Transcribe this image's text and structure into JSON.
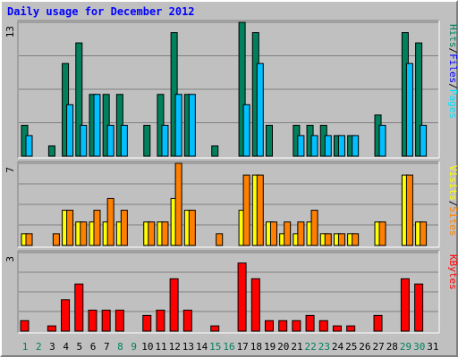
{
  "title": "Daily usage for December 2012",
  "colors": {
    "hits": "#00805c",
    "files": "#00c0ff",
    "pages": "#00e0ff",
    "visits": "#ffff00",
    "sites": "#ff8000",
    "kbytes": "#ff0000",
    "background": "#c0c0c0",
    "plot": "#c0c0c0",
    "grid": "#808080",
    "title": "#0000ff",
    "weekend_label": "#00805c"
  },
  "legend": {
    "panel1": [
      {
        "label": "Hits",
        "color": "#00805c"
      },
      {
        "sep": "/",
        "color": "#000000"
      },
      {
        "label": "Files",
        "color": "#0000ff"
      },
      {
        "sep": "/",
        "color": "#000000"
      },
      {
        "label": "Pages",
        "color": "#00e0ff"
      }
    ],
    "panel2": [
      {
        "label": "Visits",
        "color": "#ffff00"
      },
      {
        "sep": "/",
        "color": "#000000"
      },
      {
        "label": "Sites",
        "color": "#ff8000"
      }
    ],
    "panel3": [
      {
        "label": "KBytes",
        "color": "#ff0000"
      }
    ]
  },
  "chart_data": [
    {
      "type": "bar",
      "title": "Daily usage for December 2012",
      "categories": [
        "1",
        "2",
        "3",
        "4",
        "5",
        "6",
        "7",
        "8",
        "9",
        "10",
        "11",
        "12",
        "13",
        "14",
        "15",
        "16",
        "17",
        "18",
        "19",
        "20",
        "21",
        "22",
        "23",
        "24",
        "25",
        "26",
        "27",
        "28",
        "29",
        "30",
        "31"
      ],
      "weekend_days": [
        "1",
        "2",
        "8",
        "9",
        "15",
        "16",
        "22",
        "23",
        "29",
        "30"
      ],
      "ylabel_max": "13",
      "ylim": [
        0,
        13
      ],
      "series": [
        {
          "name": "Hits",
          "values": [
            3,
            0,
            1,
            9,
            11,
            6,
            6,
            6,
            0,
            3,
            6,
            12,
            6,
            0,
            1,
            0,
            13,
            12,
            3,
            0,
            3,
            3,
            3,
            2,
            2,
            0,
            4,
            0,
            12,
            11,
            0
          ]
        },
        {
          "name": "Files",
          "values": [
            2,
            0,
            0,
            5,
            3,
            6,
            3,
            3,
            0,
            0,
            3,
            6,
            6,
            0,
            0,
            0,
            5,
            9,
            0,
            0,
            2,
            2,
            2,
            2,
            2,
            0,
            3,
            0,
            9,
            3,
            0
          ]
        }
      ]
    },
    {
      "type": "bar",
      "categories": [
        "1",
        "2",
        "3",
        "4",
        "5",
        "6",
        "7",
        "8",
        "9",
        "10",
        "11",
        "12",
        "13",
        "14",
        "15",
        "16",
        "17",
        "18",
        "19",
        "20",
        "21",
        "22",
        "23",
        "24",
        "25",
        "26",
        "27",
        "28",
        "29",
        "30",
        "31"
      ],
      "ylabel_max": "7",
      "ylim": [
        0,
        7
      ],
      "series": [
        {
          "name": "Visits",
          "values": [
            1,
            0,
            0,
            3,
            2,
            2,
            2,
            2,
            0,
            2,
            2,
            4,
            3,
            0,
            0,
            0,
            3,
            6,
            2,
            1,
            1,
            2,
            1,
            1,
            1,
            0,
            2,
            0,
            6,
            2,
            0
          ]
        },
        {
          "name": "Sites",
          "values": [
            1,
            0,
            1,
            3,
            2,
            3,
            4,
            3,
            0,
            2,
            2,
            7,
            3,
            0,
            1,
            0,
            6,
            6,
            2,
            2,
            2,
            3,
            1,
            1,
            1,
            0,
            2,
            0,
            6,
            2,
            0
          ]
        }
      ]
    },
    {
      "type": "bar",
      "categories": [
        "1",
        "2",
        "3",
        "4",
        "5",
        "6",
        "7",
        "8",
        "9",
        "10",
        "11",
        "12",
        "13",
        "14",
        "15",
        "16",
        "17",
        "18",
        "19",
        "20",
        "21",
        "22",
        "23",
        "24",
        "25",
        "26",
        "27",
        "28",
        "29",
        "30",
        "31"
      ],
      "ylabel_max": "3",
      "ylim": [
        0,
        3
      ],
      "series": [
        {
          "name": "KBytes",
          "values": [
            0.4,
            0,
            0.2,
            1.2,
            1.8,
            0.8,
            0.8,
            0.8,
            0,
            0.6,
            0.8,
            2.0,
            0.8,
            0,
            0.2,
            0,
            2.6,
            2.0,
            0.4,
            0.4,
            0.4,
            0.6,
            0.4,
            0.2,
            0.2,
            0,
            0.6,
            0,
            2.0,
            1.8,
            0
          ]
        }
      ]
    }
  ]
}
